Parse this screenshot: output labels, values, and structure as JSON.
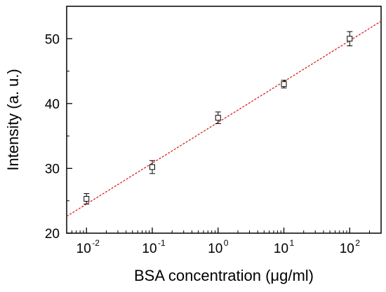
{
  "chart_data": {
    "type": "scatter",
    "title": "",
    "xlabel": "BSA concentration (μg/ml)",
    "ylabel": "Intensity (a. u.)",
    "x_scale": "log",
    "xlim": [
      0.005,
      300
    ],
    "ylim": [
      20,
      55
    ],
    "x_ticks": [
      {
        "value": 0.01,
        "base": "10",
        "exp": "-2"
      },
      {
        "value": 0.1,
        "base": "10",
        "exp": "-1"
      },
      {
        "value": 1,
        "base": "10",
        "exp": "0"
      },
      {
        "value": 10,
        "base": "10",
        "exp": "1"
      },
      {
        "value": 100,
        "base": "10",
        "exp": "2"
      }
    ],
    "y_ticks": [
      {
        "value": 20,
        "label": "20"
      },
      {
        "value": 30,
        "label": "30"
      },
      {
        "value": 40,
        "label": "40"
      },
      {
        "value": 50,
        "label": "50"
      }
    ],
    "grid": false,
    "series": [
      {
        "marker": "open-square",
        "color": "#000000",
        "x": [
          0.01,
          0.1,
          1,
          10,
          100
        ],
        "y": [
          25.3,
          30.2,
          37.8,
          43.0,
          50.0
        ],
        "error": [
          0.8,
          1.0,
          0.9,
          0.6,
          1.1
        ]
      }
    ],
    "fit_line": {
      "style": "dashed",
      "color": "#d62020",
      "points": [
        [
          0.005,
          22.6
        ],
        [
          300,
          52.7
        ]
      ]
    }
  }
}
